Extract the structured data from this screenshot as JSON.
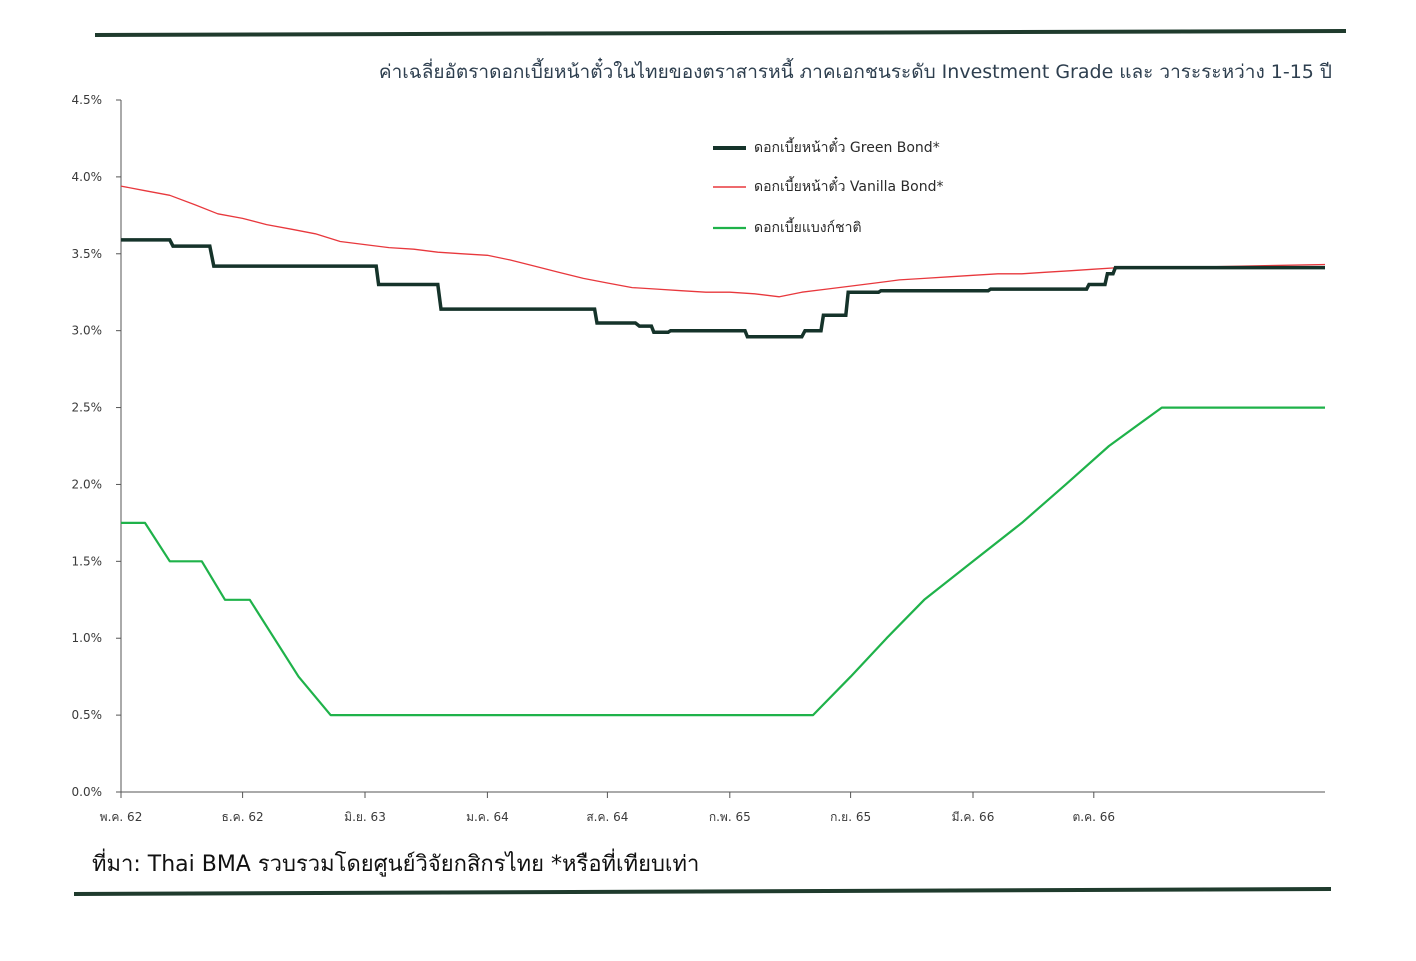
{
  "source": "ที่มา: Thai BMA รวบรวมโดยศูนย์วิจัยกสิกรไทย *หรือที่เทียบเท่า",
  "colors": {
    "rule": "#1f3b2d",
    "green_bond": "#15332a",
    "vanilla_bond": "#e8383d",
    "policy_rate": "#1fb24a",
    "axis": "#555555"
  },
  "chart_data": {
    "type": "line",
    "title": "ค่าเฉลี่ยอัตราดอกเบี้ยหน้าตั๋วในไทยของตราสารหนี้ ภาคเอกชนระดับ Investment Grade และ วาระระหว่าง  1-15 ปี",
    "xlabel": "",
    "ylabel": "",
    "x_range": [
      "2019-11-01",
      "2023-12-15"
    ],
    "ylim": [
      0,
      4.5
    ],
    "y_ticks": [
      "0.0%",
      "0.5%",
      "1.0%",
      "1.5%",
      "2.0%",
      "2.5%",
      "3.0%",
      "3.5%",
      "4.0%",
      "4.5%"
    ],
    "x_ticks": [
      {
        "label": "พ.ค. 62",
        "date": "2019-11-01"
      },
      {
        "label": "ธ.ค. 62",
        "date": "2020-04-01"
      },
      {
        "label": "มิ.ย. 63",
        "date": "2020-09-01"
      },
      {
        "label": "ม.ค. 64",
        "date": "2021-02-01"
      },
      {
        "label": "ส.ค. 64",
        "date": "2021-07-01"
      },
      {
        "label": "ก.พ. 65",
        "date": "2021-12-01"
      },
      {
        "label": "ก.ย. 65",
        "date": "2022-05-01"
      },
      {
        "label": "มี.ค. 66",
        "date": "2022-10-01"
      },
      {
        "label": "ต.ค. 66",
        "date": "2023-03-01"
      }
    ],
    "grid": false,
    "legend_position": "top-center",
    "series": [
      {
        "name": "ดอกเบี้ยหน้าตั๋ว Green Bond*",
        "color": "#15332a",
        "width": 3.5,
        "step": true,
        "points": [
          [
            "2019-11-01",
            3.59
          ],
          [
            "2020-01-01",
            3.59
          ],
          [
            "2020-01-05",
            3.55
          ],
          [
            "2020-02-20",
            3.55
          ],
          [
            "2020-02-25",
            3.42
          ],
          [
            "2020-09-15",
            3.42
          ],
          [
            "2020-09-18",
            3.3
          ],
          [
            "2020-12-01",
            3.3
          ],
          [
            "2020-12-05",
            3.14
          ],
          [
            "2021-06-15",
            3.14
          ],
          [
            "2021-06-18",
            3.05
          ],
          [
            "2021-08-05",
            3.05
          ],
          [
            "2021-08-10",
            3.03
          ],
          [
            "2021-08-25",
            3.03
          ],
          [
            "2021-08-28",
            2.99
          ],
          [
            "2021-09-15",
            2.99
          ],
          [
            "2021-09-18",
            3.0
          ],
          [
            "2021-12-20",
            3.0
          ],
          [
            "2021-12-23",
            2.96
          ],
          [
            "2022-03-01",
            2.96
          ],
          [
            "2022-03-05",
            3.0
          ],
          [
            "2022-03-25",
            3.0
          ],
          [
            "2022-03-28",
            3.1
          ],
          [
            "2022-04-25",
            3.1
          ],
          [
            "2022-04-28",
            3.25
          ],
          [
            "2022-06-05",
            3.25
          ],
          [
            "2022-06-08",
            3.26
          ],
          [
            "2022-10-20",
            3.26
          ],
          [
            "2022-10-23",
            3.27
          ],
          [
            "2023-02-20",
            3.27
          ],
          [
            "2023-02-23",
            3.3
          ],
          [
            "2023-03-15",
            3.3
          ],
          [
            "2023-03-18",
            3.37
          ],
          [
            "2023-03-25",
            3.37
          ],
          [
            "2023-03-28",
            3.41
          ],
          [
            "2023-12-15",
            3.41
          ]
        ]
      },
      {
        "name": "ดอกเบี้ยหน้าตั๋ว Vanilla Bond*",
        "color": "#e8383d",
        "width": 1.3,
        "step": false,
        "points": [
          [
            "2019-11-01",
            3.94
          ],
          [
            "2019-12-01",
            3.91
          ],
          [
            "2020-01-01",
            3.88
          ],
          [
            "2020-02-01",
            3.82
          ],
          [
            "2020-03-01",
            3.76
          ],
          [
            "2020-04-01",
            3.73
          ],
          [
            "2020-05-01",
            3.69
          ],
          [
            "2020-06-01",
            3.66
          ],
          [
            "2020-07-01",
            3.63
          ],
          [
            "2020-08-01",
            3.58
          ],
          [
            "2020-09-01",
            3.56
          ],
          [
            "2020-10-01",
            3.54
          ],
          [
            "2020-11-01",
            3.53
          ],
          [
            "2020-12-01",
            3.51
          ],
          [
            "2021-01-01",
            3.5
          ],
          [
            "2021-02-01",
            3.49
          ],
          [
            "2021-03-01",
            3.46
          ],
          [
            "2021-04-01",
            3.42
          ],
          [
            "2021-05-01",
            3.38
          ],
          [
            "2021-06-01",
            3.34
          ],
          [
            "2021-07-01",
            3.31
          ],
          [
            "2021-08-01",
            3.28
          ],
          [
            "2021-09-01",
            3.27
          ],
          [
            "2021-10-01",
            3.26
          ],
          [
            "2021-11-01",
            3.25
          ],
          [
            "2021-12-01",
            3.25
          ],
          [
            "2022-01-01",
            3.24
          ],
          [
            "2022-02-01",
            3.22
          ],
          [
            "2022-03-01",
            3.25
          ],
          [
            "2022-04-01",
            3.27
          ],
          [
            "2022-05-01",
            3.29
          ],
          [
            "2022-06-01",
            3.31
          ],
          [
            "2022-07-01",
            3.33
          ],
          [
            "2022-08-01",
            3.34
          ],
          [
            "2022-09-01",
            3.35
          ],
          [
            "2022-10-01",
            3.36
          ],
          [
            "2022-11-01",
            3.37
          ],
          [
            "2022-12-01",
            3.37
          ],
          [
            "2023-01-01",
            3.38
          ],
          [
            "2023-02-01",
            3.39
          ],
          [
            "2023-03-01",
            3.4
          ],
          [
            "2023-04-01",
            3.41
          ],
          [
            "2023-06-01",
            3.41
          ],
          [
            "2023-09-01",
            3.42
          ],
          [
            "2023-12-15",
            3.43
          ]
        ]
      },
      {
        "name": "ดอกเบี้ยแบงก์ชาติ",
        "color": "#1fb24a",
        "width": 2.2,
        "step": false,
        "points": [
          [
            "2019-11-01",
            1.75
          ],
          [
            "2019-12-01",
            1.75
          ],
          [
            "2020-01-01",
            1.5
          ],
          [
            "2020-02-10",
            1.5
          ],
          [
            "2020-03-10",
            1.25
          ],
          [
            "2020-04-10",
            1.25
          ],
          [
            "2020-06-10",
            0.75
          ],
          [
            "2020-07-20",
            0.5
          ],
          [
            "2022-03-15",
            0.5
          ],
          [
            "2022-05-01",
            0.75
          ],
          [
            "2022-06-15",
            1.0
          ],
          [
            "2022-08-01",
            1.25
          ],
          [
            "2022-10-01",
            1.5
          ],
          [
            "2022-12-01",
            1.75
          ],
          [
            "2023-01-25",
            2.0
          ],
          [
            "2023-03-20",
            2.25
          ],
          [
            "2023-05-25",
            2.5
          ],
          [
            "2023-12-15",
            2.5
          ]
        ]
      }
    ]
  }
}
